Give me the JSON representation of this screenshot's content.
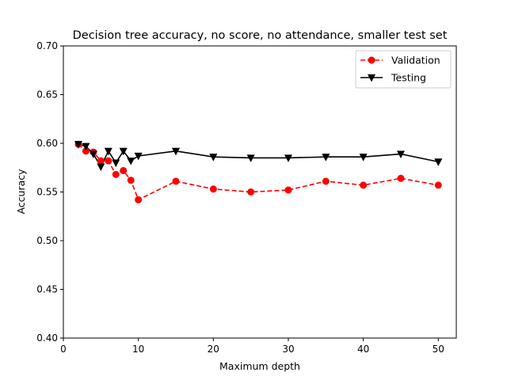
{
  "chart_data": {
    "type": "line",
    "title": "Decision tree accuracy, no score, no attendance, smaller test set",
    "xlabel": "Maximum depth",
    "ylabel": "Accuracy",
    "xlim": [
      0,
      52.4
    ],
    "ylim": [
      0.4,
      0.7
    ],
    "xticks": [
      0,
      10,
      20,
      30,
      40,
      50
    ],
    "yticks": [
      0.4,
      0.45,
      0.5,
      0.55,
      0.6,
      0.65,
      0.7
    ],
    "xtick_labels": [
      "0",
      "10",
      "20",
      "30",
      "40",
      "50"
    ],
    "ytick_labels": [
      "0.40",
      "0.45",
      "0.50",
      "0.55",
      "0.60",
      "0.65",
      "0.70"
    ],
    "grid": false,
    "legend_position": "top-right",
    "x": [
      2,
      3,
      4,
      5,
      6,
      7,
      8,
      9,
      10,
      15,
      20,
      25,
      30,
      35,
      40,
      45,
      50
    ],
    "series": [
      {
        "name": "Validation",
        "color": "#ff0000",
        "line_style": "dashed",
        "marker": "circle",
        "values": [
          0.599,
          0.592,
          0.591,
          0.582,
          0.582,
          0.568,
          0.572,
          0.562,
          0.542,
          0.561,
          0.553,
          0.55,
          0.552,
          0.561,
          0.557,
          0.564,
          0.557
        ]
      },
      {
        "name": "Testing",
        "color": "#000000",
        "line_style": "solid",
        "marker": "triangle-down",
        "values": [
          0.599,
          0.597,
          0.589,
          0.576,
          0.592,
          0.58,
          0.592,
          0.582,
          0.587,
          0.592,
          0.586,
          0.585,
          0.585,
          0.586,
          0.586,
          0.589,
          0.581
        ]
      }
    ]
  }
}
